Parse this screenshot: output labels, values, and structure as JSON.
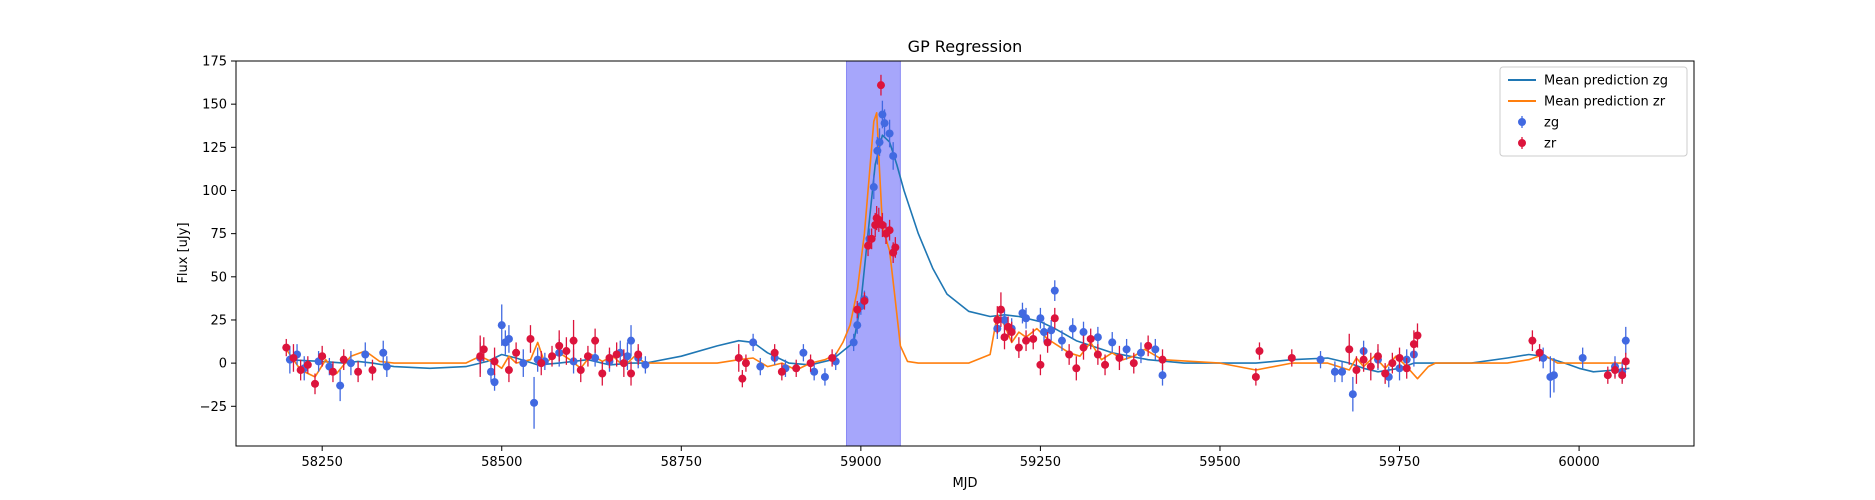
{
  "chart_data": {
    "type": "scatter",
    "title": "GP Regression",
    "xlabel": "MJD",
    "ylabel": "Flux [uJy]",
    "xlim": [
      58130,
      60160
    ],
    "ylim": [
      -48,
      175
    ],
    "x_ticks": [
      58250,
      58500,
      58750,
      59000,
      59250,
      59500,
      59750,
      60000
    ],
    "y_ticks": [
      -25,
      0,
      25,
      50,
      75,
      100,
      125,
      150,
      175
    ],
    "grid": false,
    "legend_position": "top-right",
    "shaded_region": {
      "x": [
        58980,
        59055
      ],
      "color": "#a6a6fb"
    },
    "colors": {
      "zg_line": "#1f77b4",
      "zr_line": "#ff7f0e",
      "zg_points": "#4169e1",
      "zr_points": "#dc143c"
    },
    "legend": [
      {
        "label": "Mean prediction zg",
        "kind": "line",
        "color": "#1f77b4"
      },
      {
        "label": "Mean prediction zr",
        "kind": "line",
        "color": "#ff7f0e"
      },
      {
        "label": "zg",
        "kind": "errorbar",
        "color": "#4169e1"
      },
      {
        "label": "zr",
        "kind": "errorbar",
        "color": "#dc143c"
      }
    ],
    "series": [
      {
        "name": "Mean prediction zg",
        "kind": "line",
        "color": "#1f77b4",
        "x": [
          58200,
          58250,
          58280,
          58300,
          58320,
          58350,
          58400,
          58450,
          58480,
          58500,
          58520,
          58550,
          58580,
          58620,
          58650,
          58680,
          58700,
          58750,
          58800,
          58830,
          58850,
          58870,
          58900,
          58930,
          58960,
          58990,
          59000,
          59010,
          59020,
          59030,
          59040,
          59050,
          59060,
          59080,
          59100,
          59120,
          59150,
          59180,
          59200,
          59220,
          59250,
          59270,
          59300,
          59350,
          59400,
          59450,
          59500,
          59550,
          59600,
          59650,
          59680,
          59700,
          59720,
          59750,
          59770,
          59800,
          59850,
          59900,
          59930,
          59950,
          59980,
          60000,
          60020,
          60050,
          60070
        ],
        "y": [
          2,
          1,
          0,
          1,
          0,
          -2,
          -3,
          -2,
          1,
          5,
          3,
          -1,
          0,
          2,
          -1,
          0,
          0,
          4,
          10,
          13,
          12,
          6,
          0,
          -1,
          2,
          12,
          35,
          75,
          115,
          132,
          128,
          115,
          100,
          75,
          55,
          40,
          30,
          27,
          28,
          27,
          24,
          20,
          13,
          6,
          2,
          0,
          0,
          0,
          2,
          3,
          0,
          -3,
          -5,
          -3,
          0,
          0,
          0,
          3,
          5,
          4,
          0,
          -3,
          -5,
          -4,
          -3
        ]
      },
      {
        "name": "Mean prediction zr",
        "kind": "line",
        "color": "#ff7f0e",
        "x": [
          58200,
          58210,
          58220,
          58240,
          58255,
          58270,
          58290,
          58310,
          58330,
          58350,
          58400,
          58450,
          58470,
          58490,
          58500,
          58510,
          58520,
          58540,
          58550,
          58560,
          58580,
          58595,
          58610,
          58625,
          58640,
          58655,
          58670,
          58685,
          58700,
          58750,
          58800,
          58830,
          58850,
          58870,
          58890,
          58910,
          58930,
          58950,
          58965,
          58975,
          58985,
          58995,
          59005,
          59012,
          59018,
          59022,
          59026,
          59030,
          59035,
          59040,
          59047,
          59055,
          59065,
          59080,
          59150,
          59180,
          59190,
          59200,
          59210,
          59220,
          59230,
          59245,
          59260,
          59275,
          59290,
          59305,
          59320,
          59335,
          59350,
          59365,
          59380,
          59395,
          59420,
          59500,
          59550,
          59600,
          59650,
          59680,
          59690,
          59700,
          59715,
          59730,
          59745,
          59760,
          59775,
          59790,
          59800,
          59850,
          59900,
          59930,
          59950,
          59970,
          59990,
          60000,
          60020,
          60040,
          60060,
          60070
        ],
        "y": [
          8,
          2,
          -4,
          -8,
          2,
          -6,
          4,
          7,
          1,
          0,
          0,
          0,
          4,
          0,
          -3,
          4,
          0,
          2,
          12,
          0,
          6,
          2,
          -3,
          5,
          1,
          4,
          -2,
          4,
          0,
          0,
          0,
          2,
          3,
          -2,
          0,
          -4,
          0,
          2,
          5,
          12,
          22,
          42,
          75,
          110,
          140,
          145,
          112,
          80,
          72,
          65,
          40,
          10,
          1,
          0,
          0,
          5,
          28,
          22,
          12,
          18,
          15,
          20,
          14,
          10,
          6,
          4,
          12,
          2,
          6,
          2,
          4,
          8,
          2,
          0,
          -4,
          0,
          0,
          -4,
          3,
          -2,
          4,
          -3,
          4,
          -2,
          -9,
          -2,
          0,
          0,
          0,
          2,
          5,
          0,
          0,
          0,
          0,
          0,
          0,
          0
        ]
      },
      {
        "name": "zg",
        "kind": "errorbar",
        "color": "#4169e1",
        "points": [
          [
            58205,
            2,
            8
          ],
          [
            58215,
            5,
            6
          ],
          [
            58225,
            -3,
            7
          ],
          [
            58245,
            1,
            6
          ],
          [
            58260,
            -2,
            5
          ],
          [
            58275,
            -13,
            9
          ],
          [
            58290,
            0,
            7
          ],
          [
            58310,
            5,
            7
          ],
          [
            58335,
            6,
            7
          ],
          [
            58340,
            -2,
            6
          ],
          [
            58470,
            3,
            9
          ],
          [
            58485,
            -5,
            6
          ],
          [
            58490,
            -11,
            5
          ],
          [
            58500,
            22,
            12
          ],
          [
            58505,
            12,
            7
          ],
          [
            58510,
            14,
            8
          ],
          [
            58530,
            0,
            8
          ],
          [
            58545,
            -23,
            15
          ],
          [
            58550,
            2,
            7
          ],
          [
            58560,
            1,
            5
          ],
          [
            58580,
            6,
            8
          ],
          [
            58600,
            1,
            7
          ],
          [
            58630,
            3,
            5
          ],
          [
            58650,
            1,
            6
          ],
          [
            58665,
            6,
            7
          ],
          [
            58675,
            4,
            8
          ],
          [
            58680,
            13,
            9
          ],
          [
            58690,
            3,
            6
          ],
          [
            58700,
            -1,
            5
          ],
          [
            58850,
            12,
            5
          ],
          [
            58860,
            -2,
            5
          ],
          [
            58880,
            3,
            4
          ],
          [
            58895,
            -3,
            5
          ],
          [
            58920,
            6,
            5
          ],
          [
            58935,
            -5,
            5
          ],
          [
            58950,
            -8,
            5
          ],
          [
            58965,
            1,
            5
          ],
          [
            58990,
            12,
            5
          ],
          [
            58995,
            22,
            5
          ],
          [
            59000,
            33,
            5
          ],
          [
            59005,
            37,
            5
          ],
          [
            59012,
            72,
            6
          ],
          [
            59018,
            102,
            7
          ],
          [
            59023,
            123,
            8
          ],
          [
            59026,
            128,
            8
          ],
          [
            59030,
            144,
            8
          ],
          [
            59033,
            139,
            8
          ],
          [
            59040,
            133,
            8
          ],
          [
            59045,
            120,
            8
          ],
          [
            59190,
            20,
            6
          ],
          [
            59200,
            25,
            6
          ],
          [
            59210,
            20,
            6
          ],
          [
            59225,
            29,
            6
          ],
          [
            59230,
            26,
            6
          ],
          [
            59250,
            26,
            6
          ],
          [
            59255,
            18,
            6
          ],
          [
            59265,
            19,
            6
          ],
          [
            59270,
            42,
            6
          ],
          [
            59280,
            13,
            6
          ],
          [
            59295,
            20,
            6
          ],
          [
            59310,
            18,
            6
          ],
          [
            59330,
            15,
            6
          ],
          [
            59350,
            12,
            6
          ],
          [
            59370,
            8,
            6
          ],
          [
            59390,
            6,
            6
          ],
          [
            59410,
            8,
            6
          ],
          [
            59420,
            -7,
            6
          ],
          [
            59640,
            2,
            5
          ],
          [
            59660,
            -5,
            6
          ],
          [
            59670,
            -5,
            6
          ],
          [
            59685,
            -18,
            10
          ],
          [
            59700,
            7,
            6
          ],
          [
            59720,
            2,
            6
          ],
          [
            59735,
            -8,
            6
          ],
          [
            59750,
            -3,
            7
          ],
          [
            59760,
            2,
            6
          ],
          [
            59770,
            5,
            7
          ],
          [
            59950,
            3,
            6
          ],
          [
            59960,
            -8,
            12
          ],
          [
            59965,
            -7,
            10
          ],
          [
            60005,
            3,
            6
          ],
          [
            60050,
            -2,
            6
          ],
          [
            60060,
            -5,
            6
          ],
          [
            60065,
            13,
            8
          ]
        ]
      },
      {
        "name": "zr",
        "kind": "errorbar",
        "color": "#dc143c",
        "points": [
          [
            58200,
            9,
            5
          ],
          [
            58210,
            3,
            8
          ],
          [
            58220,
            -4,
            6
          ],
          [
            58230,
            -1,
            5
          ],
          [
            58240,
            -12,
            6
          ],
          [
            58250,
            4,
            6
          ],
          [
            58265,
            -5,
            6
          ],
          [
            58280,
            2,
            6
          ],
          [
            58300,
            -5,
            6
          ],
          [
            58320,
            -4,
            6
          ],
          [
            58470,
            4,
            12
          ],
          [
            58475,
            8,
            7
          ],
          [
            58490,
            1,
            8
          ],
          [
            58510,
            -4,
            7
          ],
          [
            58520,
            6,
            6
          ],
          [
            58540,
            14,
            8
          ],
          [
            58555,
            0,
            7
          ],
          [
            58570,
            4,
            6
          ],
          [
            58580,
            10,
            9
          ],
          [
            58590,
            7,
            8
          ],
          [
            58600,
            13,
            12
          ],
          [
            58610,
            -4,
            7
          ],
          [
            58620,
            4,
            6
          ],
          [
            58630,
            13,
            7
          ],
          [
            58640,
            -6,
            7
          ],
          [
            58650,
            3,
            6
          ],
          [
            58660,
            5,
            7
          ],
          [
            58670,
            0,
            8
          ],
          [
            58680,
            -6,
            7
          ],
          [
            58690,
            5,
            6
          ],
          [
            58830,
            3,
            8
          ],
          [
            58835,
            -9,
            5
          ],
          [
            58840,
            0,
            5
          ],
          [
            58880,
            6,
            5
          ],
          [
            58890,
            -5,
            5
          ],
          [
            58910,
            -3,
            5
          ],
          [
            58930,
            0,
            5
          ],
          [
            58960,
            3,
            5
          ],
          [
            58995,
            31,
            5
          ],
          [
            59005,
            36,
            5
          ],
          [
            59010,
            68,
            6
          ],
          [
            59015,
            72,
            6
          ],
          [
            59020,
            80,
            7
          ],
          [
            59022,
            84,
            7
          ],
          [
            59025,
            83,
            7
          ],
          [
            59028,
            161,
            6
          ],
          [
            59030,
            80,
            7
          ],
          [
            59035,
            75,
            6
          ],
          [
            59040,
            77,
            6
          ],
          [
            59045,
            64,
            6
          ],
          [
            59048,
            67,
            6
          ],
          [
            59190,
            25,
            8
          ],
          [
            59195,
            31,
            10
          ],
          [
            59200,
            15,
            7
          ],
          [
            59205,
            21,
            6
          ],
          [
            59210,
            18,
            6
          ],
          [
            59220,
            9,
            6
          ],
          [
            59230,
            13,
            6
          ],
          [
            59240,
            14,
            6
          ],
          [
            59250,
            -1,
            6
          ],
          [
            59260,
            12,
            6
          ],
          [
            59270,
            26,
            6
          ],
          [
            59290,
            5,
            6
          ],
          [
            59300,
            -3,
            7
          ],
          [
            59310,
            9,
            7
          ],
          [
            59320,
            14,
            6
          ],
          [
            59330,
            5,
            6
          ],
          [
            59340,
            -1,
            6
          ],
          [
            59360,
            3,
            7
          ],
          [
            59380,
            0,
            6
          ],
          [
            59400,
            10,
            6
          ],
          [
            59420,
            2,
            6
          ],
          [
            59550,
            -8,
            5
          ],
          [
            59555,
            7,
            5
          ],
          [
            59600,
            3,
            5
          ],
          [
            59680,
            8,
            9
          ],
          [
            59690,
            -4,
            8
          ],
          [
            59700,
            2,
            7
          ],
          [
            59710,
            -2,
            8
          ],
          [
            59720,
            4,
            7
          ],
          [
            59730,
            -6,
            6
          ],
          [
            59740,
            0,
            6
          ],
          [
            59750,
            3,
            6
          ],
          [
            59760,
            -3,
            6
          ],
          [
            59770,
            11,
            8
          ],
          [
            59775,
            16,
            7
          ],
          [
            59935,
            13,
            6
          ],
          [
            59945,
            6,
            5
          ],
          [
            60040,
            -7,
            5
          ],
          [
            60050,
            -4,
            5
          ],
          [
            60060,
            -7,
            5
          ],
          [
            60065,
            1,
            5
          ]
        ]
      }
    ]
  }
}
